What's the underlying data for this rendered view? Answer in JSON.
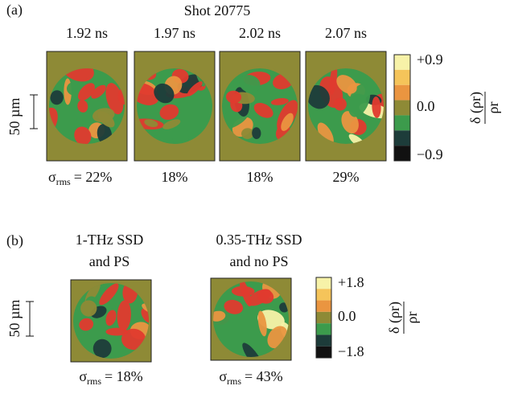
{
  "panel_a": {
    "label": "(a)",
    "title": "Shot 20775",
    "scale_label": "50 µm",
    "sigma_symbol": "σ",
    "sigma_sub": "rms",
    "frames": [
      {
        "time": "1.92 ns",
        "rms": "= 22%"
      },
      {
        "time": "1.97 ns",
        "rms": "18%"
      },
      {
        "time": "2.02 ns",
        "rms": "18%"
      },
      {
        "time": "2.07 ns",
        "rms": "29%"
      }
    ],
    "colorbar": {
      "ticks": [
        "+0.9",
        "0.0",
        "−0.9"
      ],
      "label_num": "δ (ρr)",
      "label_den": "ρr"
    }
  },
  "panel_b": {
    "label": "(b)",
    "scale_label": "50 µm",
    "sigma_symbol": "σ",
    "sigma_sub": "rms",
    "frames": [
      {
        "title_1": "1-THz SSD",
        "title_2": "and PS",
        "rms": "= 18%"
      },
      {
        "title_1": "0.35-THz SSD",
        "title_2": "and no PS",
        "rms": "= 43%"
      }
    ],
    "colorbar": {
      "ticks": [
        "+1.8",
        "0.0",
        "−1.8"
      ],
      "label_num": "δ (ρr)",
      "label_den": "ρr"
    }
  }
}
